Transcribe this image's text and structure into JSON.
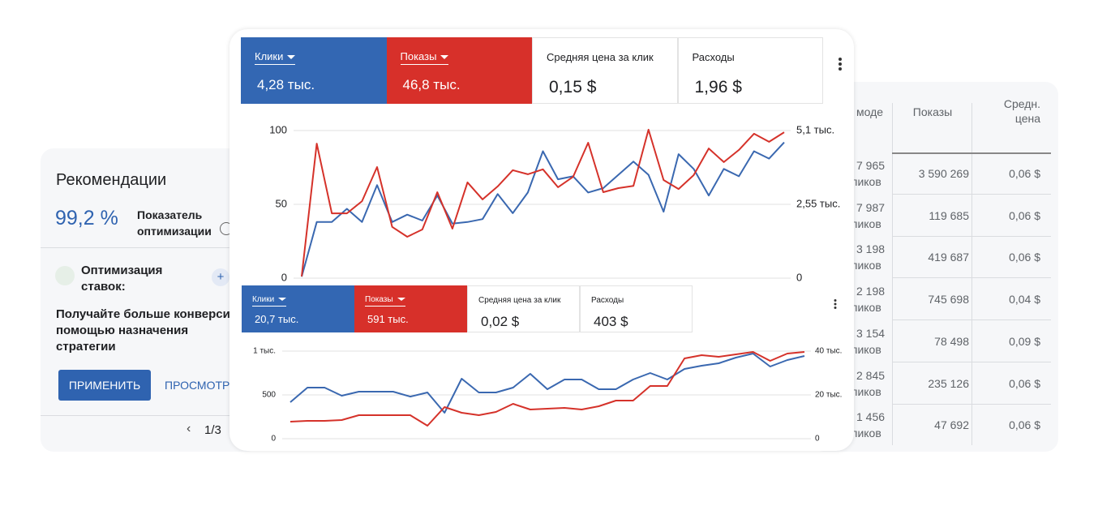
{
  "recommendations": {
    "title": "Рекомендации",
    "score": "99,2 %",
    "score_label": "Показатель оптимизации",
    "item": "Оптимизация ставок:",
    "description": "Получайте больше конверсий с помощью назначения стратегии",
    "apply": "ПРИМЕНИТЬ",
    "view": "ПРОСМОТРЕТЬ",
    "pager": "1/3"
  },
  "table": {
    "headers": [
      "моде",
      "Показы",
      "Средн. цена"
    ],
    "rows": [
      [
        "7 965",
        "кликов",
        "3 590 269",
        "0,06 $"
      ],
      [
        "7 987",
        "кликов",
        "119 685",
        "0,06 $"
      ],
      [
        "3 198",
        "кликов",
        "419 687",
        "0,06 $"
      ],
      [
        "2 198",
        "кликов",
        "745 698",
        "0,04 $"
      ],
      [
        "3 154",
        "кликов",
        "78 498",
        "0,09 $"
      ],
      [
        "2 845",
        "кликов",
        "235 126",
        "0,06 $"
      ],
      [
        "1 456",
        "кликов",
        "47 692",
        "0,06 $"
      ]
    ]
  },
  "panels": [
    {
      "metrics": [
        {
          "label": "Клики",
          "value": "4,28 тыс."
        },
        {
          "label": "Показы",
          "value": "46,8 тыс."
        },
        {
          "label": "Средняя цена за клик",
          "value": "0,15 $"
        },
        {
          "label": "Расходы",
          "value": "1,96 $"
        }
      ]
    },
    {
      "metrics": [
        {
          "label": "Клики",
          "value": "20,7 тыс."
        },
        {
          "label": "Показы",
          "value": "591 тыс."
        },
        {
          "label": "Средняя цена за клик",
          "value": "0,02 $"
        },
        {
          "label": "Расходы",
          "value": "403 $"
        }
      ]
    }
  ],
  "chart_data": [
    {
      "type": "line",
      "categories": [
        null,
        null,
        null,
        null,
        null,
        null,
        null,
        null,
        null,
        null,
        null,
        null,
        null,
        null,
        null,
        null,
        null,
        null,
        null,
        null,
        null,
        null,
        null,
        null,
        null,
        null,
        null,
        null,
        null,
        null,
        null,
        null,
        null
      ],
      "ylim": [
        0,
        100
      ],
      "yticks": [
        0,
        50,
        100
      ],
      "y2lim": [
        0,
        5100
      ],
      "y2ticks": [
        0,
        {
          "value": 2550,
          "label": "2,55 тыс."
        },
        {
          "value": 5100,
          "label": "5,1 тыс."
        }
      ],
      "grid": true,
      "series": [
        {
          "color": "#3a68b0",
          "values": [
            1,
            38,
            38,
            47,
            38,
            63,
            38,
            43,
            39,
            56,
            37,
            38,
            40,
            57,
            44,
            58,
            86,
            67,
            69,
            58,
            61,
            70,
            79,
            70,
            45,
            84,
            74,
            56,
            74,
            69,
            86,
            81,
            92
          ]
        },
        {
          "color": "#d5322a",
          "axis": "y2",
          "values": [
            60,
            4650,
            2240,
            2240,
            2660,
            3840,
            1770,
            1430,
            1680,
            2970,
            1710,
            3310,
            2720,
            3170,
            3730,
            3590,
            3760,
            3140,
            3500,
            4680,
            2970,
            3110,
            3190,
            5130,
            3390,
            3080,
            3560,
            4480,
            4010,
            4430,
            4990,
            4710,
            5040
          ]
        }
      ]
    },
    {
      "type": "line",
      "categories": [
        null,
        null,
        null,
        null,
        null,
        null,
        null,
        null,
        null,
        null,
        null,
        null,
        null,
        null,
        null,
        null,
        null,
        null,
        null,
        null,
        null,
        null,
        null,
        null,
        null,
        null,
        null,
        null,
        null,
        null,
        null
      ],
      "ylim": [
        0,
        1000
      ],
      "yticks": [
        0,
        500,
        {
          "value": 1000,
          "label": "1 тыс."
        }
      ],
      "y2lim": [
        0,
        40000
      ],
      "y2ticks": [
        0,
        {
          "value": 20000,
          "label": "20 тыс."
        },
        {
          "value": 40000,
          "label": "40 тыс."
        }
      ],
      "grid": true,
      "series": [
        {
          "color": "#3a68b0",
          "values": [
            417,
            583,
            583,
            491,
            537,
            537,
            537,
            481,
            528,
            296,
            685,
            528,
            528,
            583,
            741,
            565,
            676,
            676,
            565,
            565,
            676,
            750,
            676,
            796,
            833,
            861,
            926,
            972,
            824,
            898,
            944
          ]
        },
        {
          "color": "#d5322a",
          "axis": "y2",
          "values": [
            7780,
            8150,
            8150,
            8520,
            10740,
            10740,
            10740,
            10740,
            5930,
            14440,
            11850,
            10740,
            12220,
            15930,
            13330,
            13700,
            14070,
            13330,
            14810,
            17410,
            17410,
            24070,
            24070,
            36670,
            38150,
            37410,
            38520,
            39630,
            35560,
            38890,
            39630
          ]
        }
      ]
    }
  ]
}
